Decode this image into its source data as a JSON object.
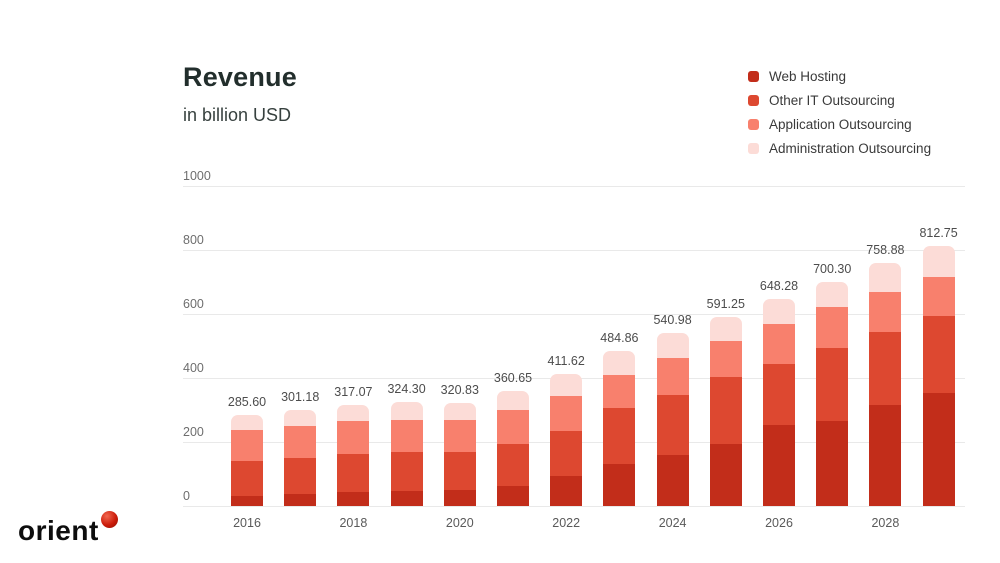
{
  "header": {
    "title": "Revenue",
    "subtitle": "in billion USD"
  },
  "logo": {
    "text": "orient",
    "dot_color": "#cc1c0a"
  },
  "chart_data": {
    "type": "bar",
    "stacked": true,
    "title": "Revenue",
    "subtitle": "in billion USD",
    "grid": true,
    "legend_position": "top-right",
    "ylim": [
      0,
      1000
    ],
    "y_ticks": [
      0,
      200,
      400,
      600,
      800,
      1000
    ],
    "categories": [
      "2016",
      "2017",
      "2018",
      "2019",
      "2020",
      "2021",
      "2022",
      "2023",
      "2024",
      "2025",
      "2026",
      "2027",
      "2028",
      "2029"
    ],
    "x_tick_labels": [
      "2016",
      "2018",
      "2020",
      "2022",
      "2024",
      "2026",
      "2028"
    ],
    "series": [
      {
        "name": "Web Hosting",
        "color": "#c22d1a",
        "values": [
          32,
          38,
          44,
          48,
          50,
          62,
          95,
          130,
          159,
          194,
          252,
          266,
          316,
          354
        ]
      },
      {
        "name": "Other IT Outsourcing",
        "color": "#dd4830",
        "values": [
          108,
          112,
          120,
          122,
          120,
          132,
          140,
          177,
          188,
          209,
          193,
          229,
          227,
          241
        ]
      },
      {
        "name": "Application Outsourcing",
        "color": "#f8806d",
        "values": [
          98,
          100,
          102,
          100,
          98,
          106,
          108,
          104,
          116,
          114,
          124,
          127,
          125,
          120
        ]
      },
      {
        "name": "Administration Outsourcing",
        "color": "#fcdcd7",
        "values": [
          47.6,
          51.18,
          51.07,
          54.3,
          52.83,
          60.65,
          68.62,
          73.86,
          77.98,
          74.25,
          79.28,
          78.3,
          90.88,
          97.75
        ]
      }
    ],
    "totals": [
      "285.60",
      "301.18",
      "317.07",
      "324.30",
      "320.83",
      "360.65",
      "411.62",
      "484.86",
      "540.98",
      "591.25",
      "648.28",
      "700.30",
      "758.88",
      "812.75"
    ]
  }
}
